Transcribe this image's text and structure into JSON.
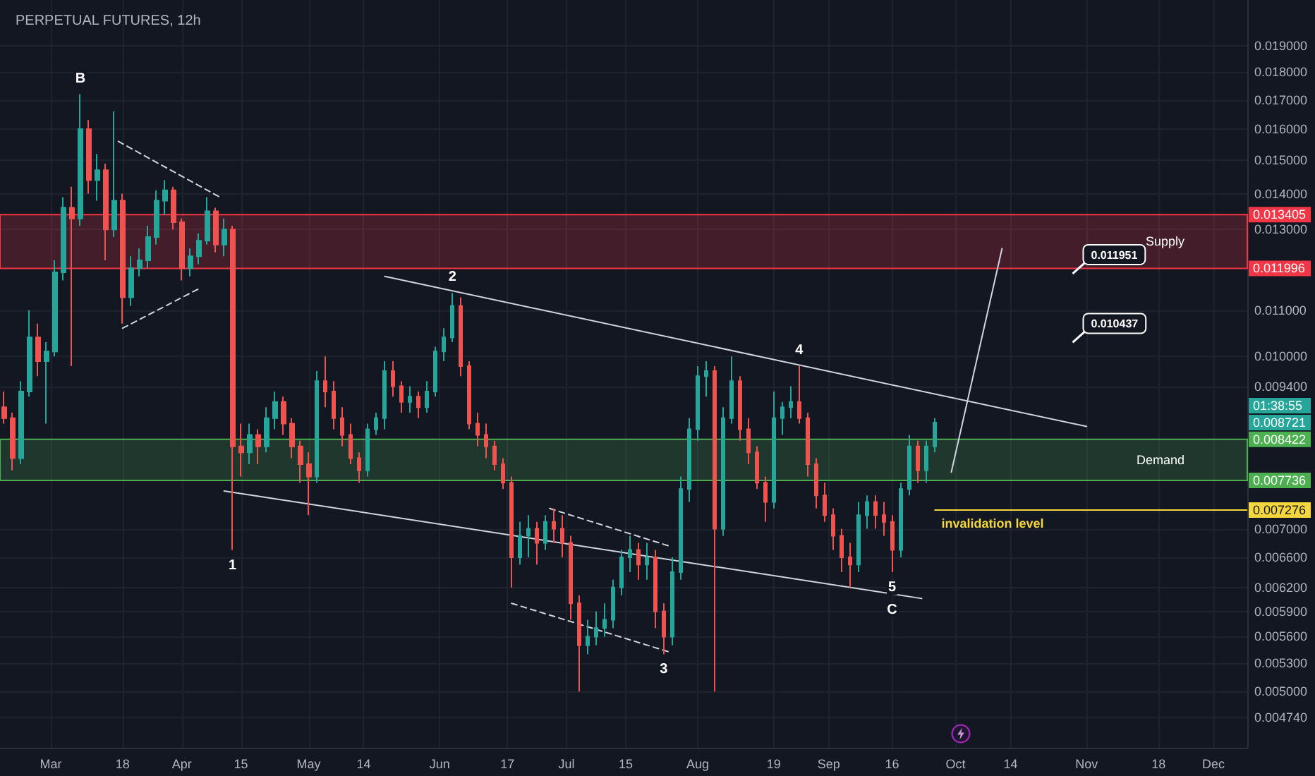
{
  "chart_data": {
    "type": "candlestick",
    "title": "PERPETUAL FUTURES, 12h",
    "x": [
      "--02-19",
      "--02-21",
      "--02-23",
      "--02-25",
      "--02-27",
      "--02-29",
      "--03-02",
      "--03-04",
      "--03-06",
      "--03-08",
      "--03-10",
      "--03-12",
      "--03-14",
      "--03-16",
      "--03-18",
      "--03-20",
      "--03-22",
      "--03-24",
      "--03-26",
      "--03-28",
      "--03-30",
      "--04-01",
      "--04-03",
      "--04-05",
      "--04-07",
      "--04-09",
      "--04-11",
      "--04-13",
      "--04-15",
      "--04-17",
      "--04-19",
      "--04-21",
      "--04-23",
      "--04-25",
      "--04-27",
      "--04-29",
      "--05-01",
      "--05-03",
      "--05-05",
      "--05-07",
      "--05-09",
      "--05-11",
      "--05-13",
      "--05-15",
      "--05-17",
      "--05-19",
      "--05-21",
      "--05-23",
      "--05-25",
      "--05-27",
      "--05-29",
      "--05-31",
      "--06-02",
      "--06-04",
      "--06-06",
      "--06-08",
      "--06-10",
      "--06-12",
      "--06-14",
      "--06-16",
      "--06-18",
      "--06-20",
      "--06-22",
      "--06-24",
      "--06-26",
      "--06-28",
      "--06-30",
      "--07-02",
      "--07-04",
      "--07-06",
      "--07-08",
      "--07-10",
      "--07-12",
      "--07-14",
      "--07-16",
      "--07-18",
      "--07-20",
      "--07-22",
      "--07-24",
      "--07-26",
      "--07-28",
      "--07-30",
      "--08-01",
      "--08-03",
      "--08-05",
      "--08-07",
      "--08-09",
      "--08-11",
      "--08-13",
      "--08-15",
      "--08-17",
      "--08-19",
      "--08-21",
      "--08-23",
      "--08-25",
      "--08-27",
      "--08-29",
      "--08-31",
      "--09-02",
      "--09-04",
      "--09-06",
      "--09-08",
      "--09-10",
      "--09-12",
      "--09-14",
      "--09-16",
      "--09-18",
      "--09-20",
      "--09-22",
      "--09-24",
      "--09-26"
    ],
    "ohlc": [
      [
        0.009,
        0.0093,
        0.0087,
        0.0088
      ],
      [
        0.0088,
        0.0089,
        0.0079,
        0.0081
      ],
      [
        0.0081,
        0.0095,
        0.008,
        0.0093
      ],
      [
        0.0093,
        0.011,
        0.0092,
        0.0104
      ],
      [
        0.0104,
        0.0107,
        0.0096,
        0.0099
      ],
      [
        0.0099,
        0.0103,
        0.0087,
        0.0101
      ],
      [
        0.0101,
        0.0122,
        0.01,
        0.0119
      ],
      [
        0.0119,
        0.0139,
        0.0117,
        0.0136
      ],
      [
        0.0136,
        0.0142,
        0.0098,
        0.0133
      ],
      [
        0.0133,
        0.0172,
        0.0131,
        0.016
      ],
      [
        0.016,
        0.0163,
        0.014,
        0.0144
      ],
      [
        0.0144,
        0.0152,
        0.0138,
        0.0147
      ],
      [
        0.0147,
        0.0149,
        0.0122,
        0.013
      ],
      [
        0.013,
        0.0166,
        0.0128,
        0.0138
      ],
      [
        0.0138,
        0.014,
        0.0107,
        0.0113
      ],
      [
        0.0113,
        0.0123,
        0.0111,
        0.012
      ],
      [
        0.012,
        0.0125,
        0.0118,
        0.0122
      ],
      [
        0.0122,
        0.0131,
        0.012,
        0.0128
      ],
      [
        0.0128,
        0.0141,
        0.0126,
        0.0138
      ],
      [
        0.0138,
        0.0144,
        0.0134,
        0.0141
      ],
      [
        0.0141,
        0.0142,
        0.013,
        0.0132
      ],
      [
        0.0132,
        0.0133,
        0.0117,
        0.012
      ],
      [
        0.012,
        0.0125,
        0.0118,
        0.0123
      ],
      [
        0.0123,
        0.0129,
        0.0121,
        0.0127
      ],
      [
        0.0127,
        0.0139,
        0.0126,
        0.0135
      ],
      [
        0.0135,
        0.0136,
        0.0124,
        0.0126
      ],
      [
        0.0126,
        0.0133,
        0.0123,
        0.013
      ],
      [
        0.013,
        0.0131,
        0.0067,
        0.0083
      ],
      [
        0.0083,
        0.0087,
        0.0078,
        0.0082
      ],
      [
        0.0082,
        0.0087,
        0.008,
        0.0085
      ],
      [
        0.0085,
        0.0086,
        0.008,
        0.0083
      ],
      [
        0.0083,
        0.009,
        0.0082,
        0.0088
      ],
      [
        0.0088,
        0.0093,
        0.0086,
        0.0091
      ],
      [
        0.0091,
        0.0092,
        0.0085,
        0.0087
      ],
      [
        0.0087,
        0.0088,
        0.0081,
        0.0083
      ],
      [
        0.0083,
        0.0084,
        0.0077,
        0.008
      ],
      [
        0.008,
        0.0082,
        0.0072,
        0.0078
      ],
      [
        0.0078,
        0.0097,
        0.0077,
        0.0095
      ],
      [
        0.0095,
        0.01,
        0.009,
        0.0093
      ],
      [
        0.0093,
        0.0095,
        0.0086,
        0.0088
      ],
      [
        0.0088,
        0.009,
        0.0083,
        0.0085
      ],
      [
        0.0085,
        0.0087,
        0.008,
        0.0081
      ],
      [
        0.0081,
        0.0082,
        0.0077,
        0.0079
      ],
      [
        0.0079,
        0.0087,
        0.0078,
        0.0086
      ],
      [
        0.0086,
        0.0089,
        0.0085,
        0.0088
      ],
      [
        0.0088,
        0.0099,
        0.0086,
        0.0097
      ],
      [
        0.0097,
        0.0099,
        0.0092,
        0.0094
      ],
      [
        0.0094,
        0.0095,
        0.0089,
        0.0091
      ],
      [
        0.0091,
        0.0094,
        0.0089,
        0.0092
      ],
      [
        0.0092,
        0.0093,
        0.0088,
        0.009
      ],
      [
        0.009,
        0.0095,
        0.0089,
        0.0093
      ],
      [
        0.0093,
        0.0102,
        0.0092,
        0.0101
      ],
      [
        0.0101,
        0.0106,
        0.0099,
        0.0104
      ],
      [
        0.0104,
        0.0114,
        0.0103,
        0.0111
      ],
      [
        0.0111,
        0.0113,
        0.0096,
        0.0098
      ],
      [
        0.0098,
        0.0099,
        0.0086,
        0.0087
      ],
      [
        0.0087,
        0.0089,
        0.0083,
        0.0085
      ],
      [
        0.0085,
        0.0087,
        0.0081,
        0.0083
      ],
      [
        0.0083,
        0.0084,
        0.0079,
        0.008
      ],
      [
        0.008,
        0.0081,
        0.0076,
        0.0077
      ],
      [
        0.0077,
        0.0078,
        0.0062,
        0.0066
      ],
      [
        0.0066,
        0.0071,
        0.0065,
        0.0069
      ],
      [
        0.0069,
        0.0072,
        0.0066,
        0.007
      ],
      [
        0.007,
        0.0071,
        0.0065,
        0.0068
      ],
      [
        0.0068,
        0.0072,
        0.0067,
        0.0071
      ],
      [
        0.0071,
        0.0073,
        0.0068,
        0.007
      ],
      [
        0.007,
        0.0072,
        0.0066,
        0.0068
      ],
      [
        0.0068,
        0.0069,
        0.0058,
        0.006
      ],
      [
        0.006,
        0.0061,
        0.005,
        0.0055
      ],
      [
        0.0055,
        0.0058,
        0.0054,
        0.0056
      ],
      [
        0.0056,
        0.0059,
        0.0055,
        0.0057
      ],
      [
        0.0057,
        0.006,
        0.0056,
        0.0058
      ],
      [
        0.0058,
        0.0063,
        0.0057,
        0.0062
      ],
      [
        0.0062,
        0.0067,
        0.0061,
        0.0066
      ],
      [
        0.0066,
        0.0069,
        0.0064,
        0.0067
      ],
      [
        0.0067,
        0.0068,
        0.0063,
        0.0065
      ],
      [
        0.0065,
        0.0068,
        0.0063,
        0.0066
      ],
      [
        0.0066,
        0.0067,
        0.0057,
        0.0059
      ],
      [
        0.0059,
        0.006,
        0.0054,
        0.0056
      ],
      [
        0.0056,
        0.0066,
        0.0055,
        0.0064
      ],
      [
        0.0064,
        0.0078,
        0.0063,
        0.0076
      ],
      [
        0.0076,
        0.0088,
        0.0074,
        0.0086
      ],
      [
        0.0086,
        0.0098,
        0.0084,
        0.0096
      ],
      [
        0.0096,
        0.0099,
        0.0092,
        0.0097
      ],
      [
        0.0097,
        0.0098,
        0.005,
        0.007
      ],
      [
        0.007,
        0.009,
        0.0069,
        0.0088
      ],
      [
        0.0088,
        0.01,
        0.0087,
        0.0095
      ],
      [
        0.0095,
        0.0096,
        0.0084,
        0.0086
      ],
      [
        0.0086,
        0.0088,
        0.008,
        0.0082
      ],
      [
        0.0082,
        0.0083,
        0.0076,
        0.0077
      ],
      [
        0.0077,
        0.0078,
        0.0071,
        0.0074
      ],
      [
        0.0074,
        0.0093,
        0.0073,
        0.0088
      ],
      [
        0.0088,
        0.0091,
        0.0085,
        0.009
      ],
      [
        0.009,
        0.0094,
        0.0088,
        0.0091
      ],
      [
        0.0091,
        0.0098,
        0.0087,
        0.0088
      ],
      [
        0.0088,
        0.0089,
        0.0078,
        0.008
      ],
      [
        0.008,
        0.0081,
        0.0073,
        0.0075
      ],
      [
        0.0075,
        0.0077,
        0.0071,
        0.0072
      ],
      [
        0.0072,
        0.0073,
        0.0067,
        0.0069
      ],
      [
        0.0069,
        0.007,
        0.0064,
        0.0066
      ],
      [
        0.0066,
        0.0068,
        0.0062,
        0.0065
      ],
      [
        0.0065,
        0.0074,
        0.0064,
        0.0072
      ],
      [
        0.0072,
        0.0075,
        0.007,
        0.0074
      ],
      [
        0.0074,
        0.0075,
        0.007,
        0.0072
      ],
      [
        0.0072,
        0.0074,
        0.0069,
        0.0071
      ],
      [
        0.0071,
        0.0072,
        0.0064,
        0.0067
      ],
      [
        0.0067,
        0.0077,
        0.0066,
        0.0076
      ],
      [
        0.0076,
        0.0085,
        0.0075,
        0.0083
      ],
      [
        0.0083,
        0.0084,
        0.0077,
        0.0079
      ],
      [
        0.0079,
        0.0084,
        0.0077,
        0.0083
      ],
      [
        0.0083,
        0.0088,
        0.0082,
        0.008721
      ]
    ],
    "series": [
      {
        "type": "line",
        "color": "#d1d4dc",
        "x": [
          "--05-19",
          "--11-01"
        ],
        "values": [
          0.0118,
          0.00865
        ]
      },
      {
        "type": "line",
        "color": "#d1d4dc",
        "x": [
          "--04-11",
          "--09-23"
        ],
        "values": [
          0.00757,
          0.00606
        ]
      },
      {
        "type": "line",
        "color": "#d1d4dc",
        "line_style": "dashed",
        "x": [
          "--03-17",
          "--04-10"
        ],
        "values": [
          0.0156,
          0.0139
        ]
      },
      {
        "type": "line",
        "color": "#d1d4dc",
        "line_style": "dashed",
        "x": [
          "--03-18",
          "--04-05"
        ],
        "values": [
          0.0106,
          0.0115
        ]
      },
      {
        "type": "line",
        "color": "#d1d4dc",
        "line_style": "dashed",
        "x": [
          "--06-27",
          "--07-25"
        ],
        "values": [
          0.0073,
          0.00676
        ]
      },
      {
        "type": "line",
        "color": "#d1d4dc",
        "line_style": "dashed",
        "x": [
          "--06-18",
          "--07-25"
        ],
        "values": [
          0.006,
          0.00543
        ]
      },
      {
        "type": "line",
        "color": "#d1d4dc",
        "x": [
          "--09-30",
          "--10-12"
        ],
        "values": [
          0.00787,
          0.0125
        ]
      }
    ],
    "xlim": [
      "--02-18",
      "--12-09"
    ],
    "xticks": [
      {
        "value": "--03-01",
        "label": "Mar"
      },
      {
        "value": "--03-18",
        "label": "18"
      },
      {
        "value": "--04-01",
        "label": "Apr"
      },
      {
        "value": "--04-15",
        "label": "15"
      },
      {
        "value": "--05-01",
        "label": "May"
      },
      {
        "value": "--05-14",
        "label": "14"
      },
      {
        "value": "--06-01",
        "label": "Jun"
      },
      {
        "value": "--06-17",
        "label": "17"
      },
      {
        "value": "--07-01",
        "label": "Jul"
      },
      {
        "value": "--07-15",
        "label": "15"
      },
      {
        "value": "--08-01",
        "label": "Aug"
      },
      {
        "value": "--08-19",
        "label": "19"
      },
      {
        "value": "--09-01",
        "label": "Sep"
      },
      {
        "value": "--09-16",
        "label": "16"
      },
      {
        "value": "--10-01",
        "label": "Oct"
      },
      {
        "value": "--10-14",
        "label": "14"
      },
      {
        "value": "--11-01",
        "label": "Nov"
      },
      {
        "value": "--11-18",
        "label": "18"
      },
      {
        "value": "--12-01",
        "label": "Dec"
      }
    ],
    "ylim": [
      0.00445,
      0.0209
    ],
    "yticks": [
      {
        "value": 0.00474,
        "label": "0.004740"
      },
      {
        "value": 0.005,
        "label": "0.005000"
      },
      {
        "value": 0.0053,
        "label": "0.005300"
      },
      {
        "value": 0.0056,
        "label": "0.005600"
      },
      {
        "value": 0.0059,
        "label": "0.005900"
      },
      {
        "value": 0.0062,
        "label": "0.006200"
      },
      {
        "value": 0.0066,
        "label": "0.006600"
      },
      {
        "value": 0.007,
        "label": "0.007000"
      },
      0.007276,
      0.007736,
      0.008422,
      0.008721,
      {
        "value": 0.0094,
        "label": "0.009400"
      },
      {
        "value": 0.01,
        "label": "0.010000"
      },
      {
        "value": 0.011,
        "label": "0.011000"
      },
      0.011996,
      {
        "value": 0.013,
        "label": "0.013000"
      },
      0.013405,
      {
        "value": 0.014,
        "label": "0.014000"
      },
      {
        "value": 0.015,
        "label": "0.015000"
      },
      {
        "value": 0.016,
        "label": "0.016000"
      },
      {
        "value": 0.017,
        "label": "0.017000"
      },
      {
        "value": 0.018,
        "label": "0.018000"
      },
      {
        "value": 0.019,
        "label": "0.019000"
      }
    ],
    "log": true,
    "grid": true,
    "bands": [
      {
        "axis": "y",
        "from": 0.011996,
        "to": 0.013405,
        "label": "Supply",
        "color": "#f23645"
      },
      {
        "axis": "y",
        "from": 0.007736,
        "to": 0.008422,
        "label": "Demand",
        "color": "#4caf50"
      }
    ],
    "ref_lines": [
      {
        "axis": "y",
        "value": 0.007276,
        "label": "invalidation level",
        "color": "#f5d63d"
      }
    ],
    "annotations": [
      {
        "text": "B",
        "x": "--03-08",
        "y": 0.0172
      },
      {
        "text": "1",
        "x": "--04-13",
        "y": 0.0067
      },
      {
        "text": "2",
        "x": "--06-04",
        "y": 0.0114
      },
      {
        "text": "3",
        "x": "--07-24",
        "y": 0.0054
      },
      {
        "text": "4",
        "x": "--08-25",
        "y": 0.0098
      },
      {
        "text": "5",
        "x": "--09-16",
        "y": 0.0064
      },
      {
        "text": "C",
        "x": "--09-16",
        "y": 0.0064
      },
      "0.011951",
      "0.010437",
      "01:38:55"
    ]
  }
}
